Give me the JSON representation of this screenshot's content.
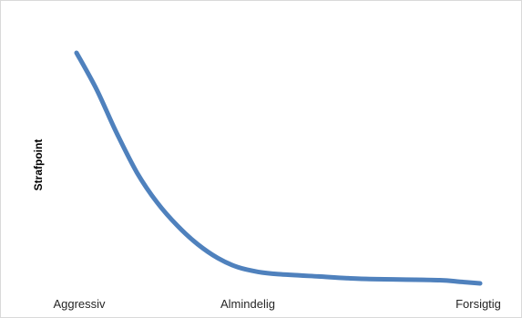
{
  "chart_data": {
    "type": "line",
    "title": "",
    "xlabel": "",
    "ylabel": "Strafpoint",
    "categories": [
      "Aggressiv",
      "Almindelig",
      "Forsigtig"
    ],
    "xlim": [
      0,
      1
    ],
    "ylim": [
      0,
      1
    ],
    "grid": false,
    "legend": "none",
    "series": [
      {
        "color": "#4f81bd",
        "x": [
          0.0,
          0.05,
          0.1,
          0.15,
          0.2,
          0.25,
          0.3,
          0.35,
          0.4,
          0.45,
          0.5,
          0.6,
          0.7,
          0.8,
          0.9,
          0.95,
          1.0
        ],
        "y": [
          1.0,
          0.84,
          0.65,
          0.48,
          0.35,
          0.25,
          0.17,
          0.11,
          0.07,
          0.05,
          0.04,
          0.03,
          0.02,
          0.017,
          0.014,
          0.007,
          0.0
        ]
      }
    ]
  }
}
